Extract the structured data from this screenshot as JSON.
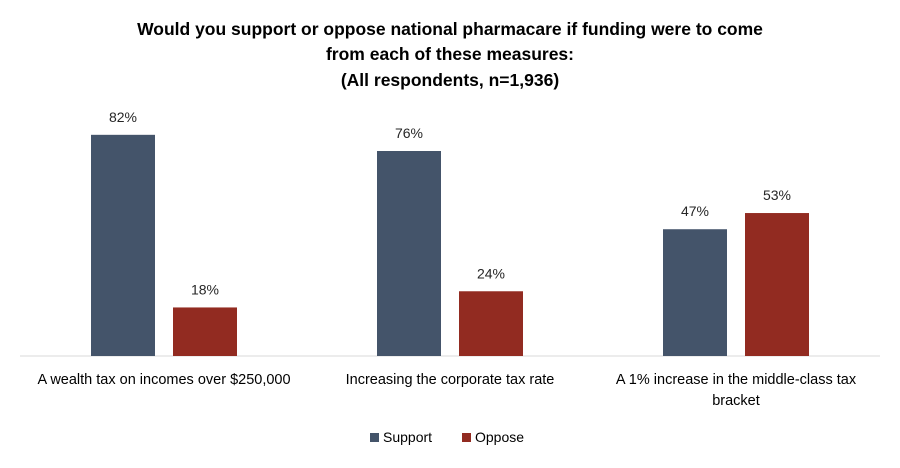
{
  "chart_data": {
    "type": "bar",
    "title": [
      "Would you support or oppose national pharmacare if funding were to come",
      "from each of these measures:",
      "(All respondents, n=1,936)"
    ],
    "categories": [
      [
        "A wealth tax on incomes over $250,000"
      ],
      [
        "Increasing the corporate tax rate"
      ],
      [
        "A 1% increase in the middle-class tax",
        "bracket"
      ]
    ],
    "series": [
      {
        "name": "Support",
        "color": "#44546A",
        "values": [
          82,
          76,
          47
        ],
        "labels": [
          "82%",
          "76%",
          "47%"
        ]
      },
      {
        "name": "Oppose",
        "color": "#922B21",
        "values": [
          18,
          24,
          53
        ],
        "labels": [
          "18%",
          "24%",
          "53%"
        ]
      }
    ],
    "ylim": [
      0,
      100
    ],
    "unit": "%",
    "grid": false,
    "legend_position": "bottom"
  }
}
